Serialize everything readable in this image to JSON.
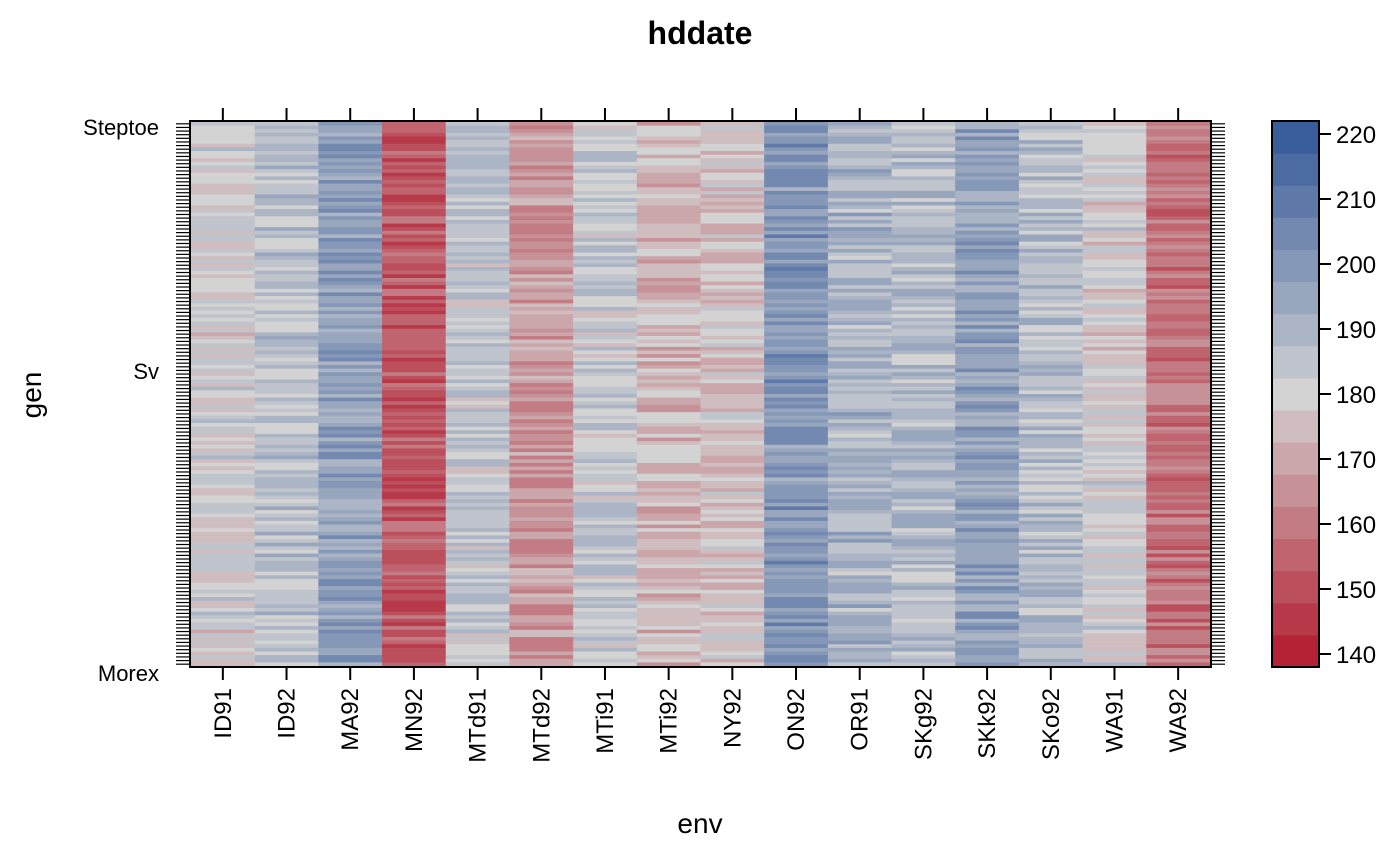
{
  "chart_data": {
    "type": "heatmap",
    "title": "hddate",
    "xlabel": "env",
    "ylabel": "gen",
    "x_categories": [
      "ID91",
      "ID92",
      "MA92",
      "MN92",
      "MTd91",
      "MTd92",
      "MTi91",
      "MTi92",
      "NY92",
      "ON92",
      "OR91",
      "SKg92",
      "SKk92",
      "SKo92",
      "WA91",
      "WA92"
    ],
    "y_labels_visible": [
      "Steptoe",
      "Sv",
      "Morex"
    ],
    "gen_count": 150,
    "column_typical_values": [
      180,
      186,
      198,
      152,
      184,
      166,
      184,
      174,
      176,
      200,
      190,
      188,
      196,
      188,
      180,
      158
    ],
    "colorbar": {
      "min": 138,
      "max": 222,
      "ticks": [
        140,
        150,
        160,
        170,
        180,
        190,
        200,
        210,
        220
      ],
      "low_color": "#B2182B",
      "mid_color": "#D3D3D3",
      "high_color": "#2F5597"
    },
    "grid": false,
    "legend": "right"
  }
}
